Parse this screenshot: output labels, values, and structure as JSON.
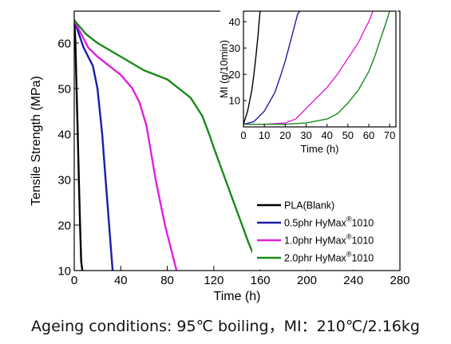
{
  "caption": "Ageing conditions: 95℃ boiling，MI：210℃/2.16kg",
  "chart_data": [
    {
      "type": "line",
      "panel": "main",
      "xlabel": "Time (h)",
      "ylabel": "Tensile Strength (MPa)",
      "xlim": [
        0,
        280
      ],
      "ylim": [
        10,
        67
      ],
      "xticks": [
        "0",
        "40",
        "80",
        "120",
        "160",
        "200",
        "240",
        "280"
      ],
      "yticks": [
        "10",
        "20",
        "30",
        "40",
        "50",
        "60"
      ],
      "grid": false,
      "legend_position": "bottom-right",
      "series": [
        {
          "name": "PLA(Blank)",
          "color": "#000000",
          "x": [
            0,
            1,
            2,
            3,
            4,
            5,
            6,
            7
          ],
          "y": [
            65,
            60,
            50,
            40,
            30,
            20,
            12,
            10
          ]
        },
        {
          "name": "0.5phr HyMax®1010",
          "color": "#1c1caa",
          "x": [
            0,
            4,
            8,
            12,
            16,
            20,
            24,
            27,
            30,
            33
          ],
          "y": [
            65,
            62,
            59,
            57,
            55,
            50,
            40,
            30,
            20,
            10
          ]
        },
        {
          "name": "1.0phr HyMax®1010",
          "color": "#e020e0",
          "x": [
            0,
            6,
            12,
            20,
            30,
            40,
            50,
            56,
            62,
            66,
            70,
            74,
            78,
            83,
            88
          ],
          "y": [
            65,
            62,
            59,
            57,
            55,
            53,
            50,
            47,
            42,
            36,
            30,
            25,
            20,
            15,
            10
          ]
        },
        {
          "name": "2.0phr HyMax®1010",
          "color": "#1a8a1a",
          "x": [
            0,
            10,
            20,
            40,
            60,
            80,
            90,
            100,
            110,
            116,
            120,
            130,
            140,
            150,
            160
          ],
          "y": [
            65,
            62,
            60,
            57,
            54,
            52,
            50,
            48,
            44,
            40,
            37,
            30,
            23,
            16,
            10
          ]
        }
      ]
    },
    {
      "type": "line",
      "panel": "inset",
      "xlabel": "Time (h)",
      "ylabel": "MI (g/10min)",
      "xlim": [
        0,
        73
      ],
      "ylim": [
        0,
        44
      ],
      "xticks": [
        "0",
        "10",
        "20",
        "30",
        "40",
        "50",
        "60",
        "70"
      ],
      "yticks": [
        "10",
        "20",
        "30",
        "40"
      ],
      "grid": false,
      "series": [
        {
          "name": "PLA(Blank)",
          "color": "#000000",
          "x": [
            0,
            2,
            4,
            5,
            6,
            7,
            7.5,
            8
          ],
          "y": [
            1,
            6,
            14,
            20,
            27,
            35,
            40,
            44
          ]
        },
        {
          "name": "0.5phr HyMax®1010",
          "color": "#1c1caa",
          "x": [
            0,
            5,
            10,
            15,
            18,
            20,
            22,
            24,
            26,
            27
          ],
          "y": [
            1,
            2,
            6,
            13,
            20,
            25,
            31,
            37,
            43,
            44
          ]
        },
        {
          "name": "1.0phr HyMax®1010",
          "color": "#e020e0",
          "x": [
            0,
            10,
            20,
            25,
            30,
            35,
            40,
            45,
            50,
            55,
            58,
            60,
            62
          ],
          "y": [
            1,
            1,
            1.5,
            3,
            7,
            11,
            15,
            20,
            26,
            32,
            37,
            40,
            44
          ]
        },
        {
          "name": "2.0phr HyMax®1010",
          "color": "#1a8a1a",
          "x": [
            0,
            10,
            20,
            30,
            40,
            45,
            50,
            55,
            60,
            63,
            65,
            68,
            70
          ],
          "y": [
            1,
            1,
            1,
            1.5,
            3,
            5,
            9,
            14,
            21,
            27,
            32,
            39,
            44
          ]
        }
      ]
    }
  ]
}
